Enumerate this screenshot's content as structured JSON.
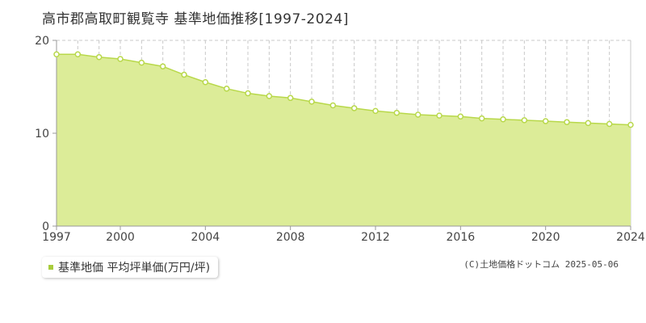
{
  "title": "高市郡高取町観覧寺 基準地価推移[1997-2024]",
  "legend_label": "基準地価 平均坪単価(万円/坪)",
  "copyright": "(C)土地価格ドットコム 2025-05-06",
  "colors": {
    "area_fill": "#dcec98",
    "line": "#b8d84a",
    "marker_fill": "#ffffff",
    "grid": "#c8c8c8",
    "axis": "#999999",
    "legend_swatch": "#a8cc3c"
  },
  "chart_data": {
    "type": "area",
    "title": "高市郡高取町観覧寺 基準地価推移[1997-2024]",
    "xlabel": "",
    "ylabel": "",
    "xlim": [
      1997,
      2024
    ],
    "ylim": [
      0,
      20
    ],
    "x_ticks": [
      "1997",
      "2000",
      "2004",
      "2008",
      "2012",
      "2016",
      "2020",
      "2024"
    ],
    "y_ticks": [
      "0",
      "10",
      "20"
    ],
    "grid": true,
    "legend_position": "bottom-left",
    "series": [
      {
        "name": "基準地価 平均坪単価(万円/坪)",
        "x": [
          1997,
          1998,
          1999,
          2000,
          2001,
          2002,
          2003,
          2004,
          2005,
          2006,
          2007,
          2008,
          2009,
          2010,
          2011,
          2012,
          2013,
          2014,
          2015,
          2016,
          2017,
          2018,
          2019,
          2020,
          2021,
          2022,
          2023,
          2024
        ],
        "values": [
          18.5,
          18.5,
          18.2,
          18.0,
          17.6,
          17.2,
          16.3,
          15.5,
          14.8,
          14.3,
          14.0,
          13.8,
          13.4,
          13.0,
          12.7,
          12.4,
          12.2,
          12.0,
          11.9,
          11.8,
          11.6,
          11.5,
          11.4,
          11.3,
          11.2,
          11.1,
          11.0,
          10.9
        ]
      }
    ]
  }
}
